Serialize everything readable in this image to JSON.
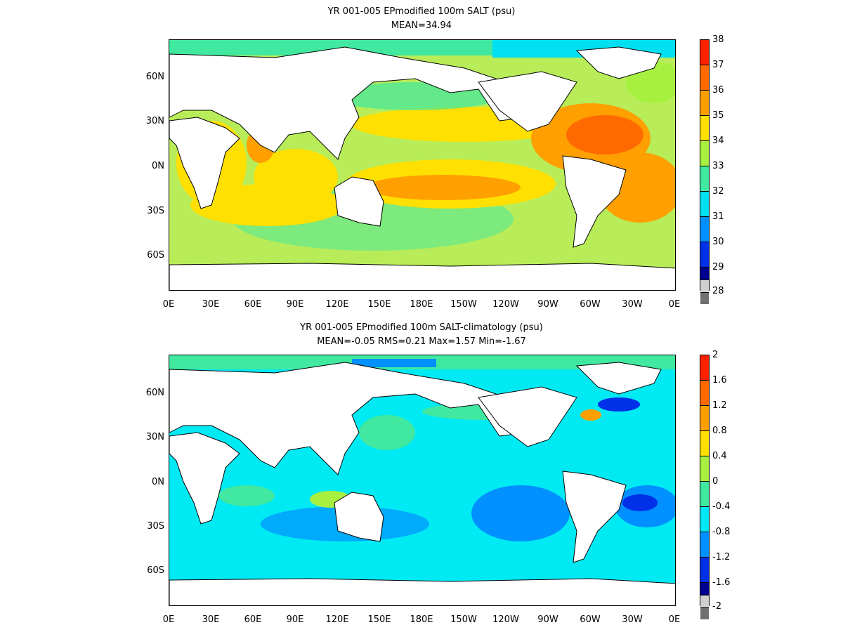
{
  "maps": [
    {
      "title": "YR 001-005 EPmodified 100m SALT (psu)",
      "subtitle": "MEAN=34.94",
      "colorbar_labels": [
        "38",
        "37",
        "36",
        "35",
        "34",
        "33",
        "32",
        "31",
        "30",
        "29",
        "28"
      ],
      "colorbar_colors": [
        "#ff2000",
        "#ff6a00",
        "#ffa000",
        "#ffe000",
        "#a8f040",
        "#40e8a0",
        "#00e0f0",
        "#0090ff",
        "#0030e8",
        "#000090",
        "#d0d0d0",
        "#707070"
      ],
      "ocean_color": "#b8ec58"
    },
    {
      "title": "YR 001-005 EPmodified 100m SALT-climatology (psu)",
      "subtitle": "MEAN=-0.05   RMS=0.21   Max=1.57   Min=-1.67",
      "colorbar_labels": [
        "2",
        "1.6",
        "1.2",
        "0.8",
        "0.4",
        "0",
        "-0.4",
        "-0.8",
        "-1.2",
        "-1.6",
        "-2"
      ],
      "colorbar_colors": [
        "#ff2000",
        "#ff6a00",
        "#ffa000",
        "#ffe000",
        "#a8f040",
        "#40e8a0",
        "#00e8f8",
        "#0090ff",
        "#0030e8",
        "#000090",
        "#d0d0d0",
        "#707070"
      ],
      "ocean_color": "#00eaf4"
    }
  ],
  "y_axis_labels": [
    "60N",
    "30N",
    "0N",
    "30S",
    "60S"
  ],
  "x_axis_labels": [
    "0E",
    "30E",
    "60E",
    "90E",
    "120E",
    "150E",
    "180E",
    "150W",
    "120W",
    "90W",
    "60W",
    "30W",
    "0E"
  ]
}
